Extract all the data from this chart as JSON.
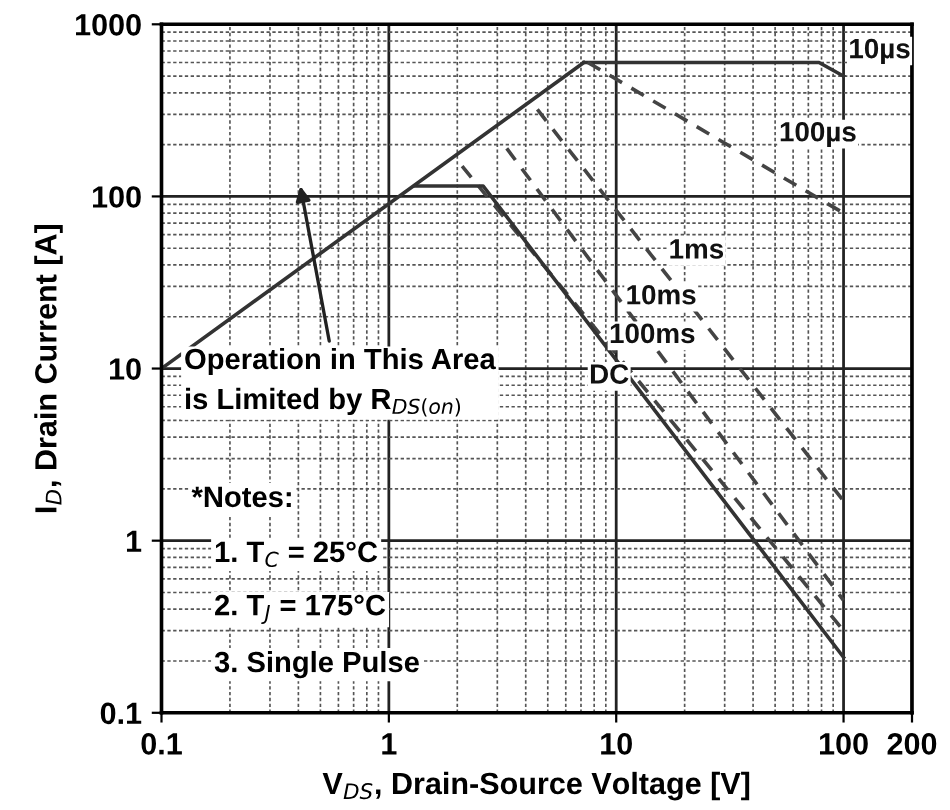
{
  "chart_data": {
    "type": "line",
    "xlabel": "V$_{DS}$, Drain-Source Voltage [V]",
    "ylabel": "I$_{D}$, Drain Current [A]",
    "log": "xy",
    "xlim": [
      0.1,
      200
    ],
    "xticks": [
      0.1,
      1,
      10,
      100,
      200
    ],
    "ylim": [
      0.1,
      1000
    ],
    "yticks": [
      0.1,
      1,
      10,
      100,
      1000
    ],
    "grid": true,
    "series": [
      {
        "name": null,
        "color": "#333333",
        "line_style": "solid",
        "x": [
          0.1,
          7.2
        ],
        "values": [
          10,
          600
        ]
      },
      {
        "name": "10µs",
        "color": "#333333",
        "line_style": "solid",
        "x": [
          7.2,
          78,
          100
        ],
        "values": [
          600,
          600,
          500
        ]
      },
      {
        "name": "100µs",
        "color": "#444444",
        "line_style": "dashed",
        "x": [
          7.5,
          100
        ],
        "values": [
          600,
          80
        ]
      },
      {
        "name": "1ms",
        "color": "#444444",
        "line_style": "dashed",
        "x": [
          4.5,
          100
        ],
        "values": [
          320,
          1.7
        ]
      },
      {
        "name": "10ms",
        "color": "#444444",
        "line_style": "dashed",
        "x": [
          3.3,
          100
        ],
        "values": [
          190,
          0.45
        ]
      },
      {
        "name": "100ms",
        "color": "#444444",
        "line_style": "dashed",
        "x": [
          2.1,
          100
        ],
        "values": [
          150,
          0.3
        ]
      },
      {
        "name": "DC",
        "color": "#333333",
        "line_style": "solid",
        "x": [
          1.3,
          2.6,
          100
        ],
        "values": [
          115,
          115,
          0.21
        ]
      }
    ],
    "annotations": [
      "Operation in This Area\nis Limited by R$_{DS(on)}$",
      "*Notes:",
      "1. T$_{C}$ = 25°C",
      "2. T$_{J}$ = 175°C",
      "3. Single Pulse"
    ]
  }
}
